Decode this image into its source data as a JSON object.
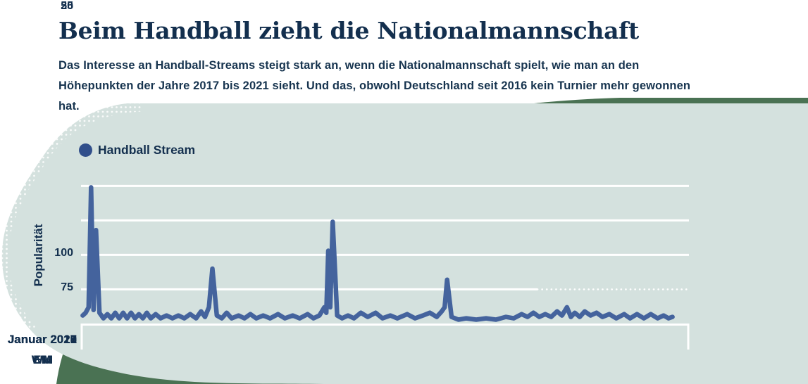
{
  "page": {
    "title": "Beim Handball zieht die Nationalmannschaft",
    "subtitle": "Das Interesse an Handball-Streams steigt stark an, wenn die Nationalmannschaft spielt, wie man an den Höhepunkten der Jahre 2017 bis 2021 sieht. Und das, obwohl Deutschland seit 2016 kein Turnier mehr gewonnen hat."
  },
  "colors": {
    "mint_blob": "#d4e1de",
    "accent_blob": "#4a7253",
    "navy_text": "#132f4e",
    "line": "#44639d",
    "legend_dot": "#314f8b",
    "gridline": "#ffffff"
  },
  "chart_data": {
    "type": "line",
    "title": "",
    "legend": {
      "label": "Handball Stream"
    },
    "ylabel": "Popularität",
    "yticks": [
      100,
      75,
      50,
      25
    ],
    "ylim": [
      0,
      105
    ],
    "x_unit": "months since Dezember 2016",
    "xlim": [
      0,
      60
    ],
    "grid": "horizontal-white",
    "legend_position": "top-left",
    "categories": [
      {
        "label": "Januar 2017",
        "event": "WM",
        "t": 1
      },
      {
        "label": "Januar 2018",
        "event": "EM",
        "t": 13
      },
      {
        "label": "Januar 2019",
        "event": "WM",
        "t": 25
      },
      {
        "label": "Januar 2020",
        "event": "EM",
        "t": 37
      },
      {
        "label": "Januar 2021",
        "event": "WM",
        "t": 49
      }
    ],
    "points": [
      [
        0.1,
        6
      ],
      [
        0.4,
        8
      ],
      [
        0.7,
        12
      ],
      [
        0.95,
        99
      ],
      [
        1.2,
        10
      ],
      [
        1.45,
        68
      ],
      [
        1.8,
        8
      ],
      [
        2.2,
        4
      ],
      [
        2.6,
        7
      ],
      [
        3.0,
        4
      ],
      [
        3.4,
        8
      ],
      [
        3.8,
        4
      ],
      [
        4.2,
        8
      ],
      [
        4.6,
        4
      ],
      [
        5.0,
        8
      ],
      [
        5.4,
        4
      ],
      [
        5.8,
        7
      ],
      [
        6.2,
        4
      ],
      [
        6.6,
        8
      ],
      [
        7.0,
        4
      ],
      [
        7.5,
        7
      ],
      [
        8.0,
        4
      ],
      [
        8.6,
        6
      ],
      [
        9.2,
        4
      ],
      [
        9.8,
        6
      ],
      [
        10.4,
        4
      ],
      [
        11.0,
        7
      ],
      [
        11.6,
        4
      ],
      [
        12.1,
        9
      ],
      [
        12.5,
        5
      ],
      [
        12.9,
        12
      ],
      [
        13.25,
        40
      ],
      [
        13.7,
        6
      ],
      [
        14.2,
        4
      ],
      [
        14.7,
        8
      ],
      [
        15.2,
        4
      ],
      [
        15.9,
        6
      ],
      [
        16.5,
        4
      ],
      [
        17.1,
        7
      ],
      [
        17.7,
        4
      ],
      [
        18.4,
        6
      ],
      [
        19.1,
        4
      ],
      [
        19.9,
        7
      ],
      [
        20.6,
        4
      ],
      [
        21.4,
        6
      ],
      [
        22.1,
        4
      ],
      [
        22.9,
        7
      ],
      [
        23.5,
        4
      ],
      [
        24.1,
        6
      ],
      [
        24.6,
        12
      ],
      [
        24.8,
        8
      ],
      [
        25.0,
        53
      ],
      [
        25.2,
        12
      ],
      [
        25.45,
        74
      ],
      [
        25.9,
        6
      ],
      [
        26.4,
        4
      ],
      [
        27.0,
        6
      ],
      [
        27.6,
        4
      ],
      [
        28.3,
        8
      ],
      [
        29.0,
        5
      ],
      [
        29.8,
        8
      ],
      [
        30.5,
        4
      ],
      [
        31.3,
        6
      ],
      [
        32.0,
        4
      ],
      [
        33.0,
        7
      ],
      [
        33.8,
        4
      ],
      [
        34.6,
        6
      ],
      [
        35.3,
        8
      ],
      [
        36.0,
        5
      ],
      [
        36.5,
        9
      ],
      [
        36.8,
        12
      ],
      [
        37.05,
        32
      ],
      [
        37.5,
        5
      ],
      [
        38.2,
        3
      ],
      [
        39.0,
        4
      ],
      [
        40.0,
        3
      ],
      [
        41.0,
        4
      ],
      [
        42.0,
        3
      ],
      [
        43.0,
        5
      ],
      [
        43.8,
        4
      ],
      [
        44.6,
        7
      ],
      [
        45.2,
        5
      ],
      [
        45.8,
        8
      ],
      [
        46.4,
        5
      ],
      [
        47.0,
        7
      ],
      [
        47.6,
        5
      ],
      [
        48.2,
        9
      ],
      [
        48.7,
        6
      ],
      [
        49.2,
        12
      ],
      [
        49.6,
        5
      ],
      [
        50.0,
        8
      ],
      [
        50.5,
        5
      ],
      [
        51.0,
        9
      ],
      [
        51.6,
        6
      ],
      [
        52.2,
        8
      ],
      [
        52.8,
        5
      ],
      [
        53.5,
        7
      ],
      [
        54.2,
        4
      ],
      [
        55.0,
        7
      ],
      [
        55.6,
        4
      ],
      [
        56.3,
        7
      ],
      [
        57.0,
        4
      ],
      [
        57.7,
        7
      ],
      [
        58.4,
        4
      ],
      [
        59.0,
        6
      ],
      [
        59.5,
        4
      ],
      [
        59.9,
        5
      ]
    ]
  }
}
